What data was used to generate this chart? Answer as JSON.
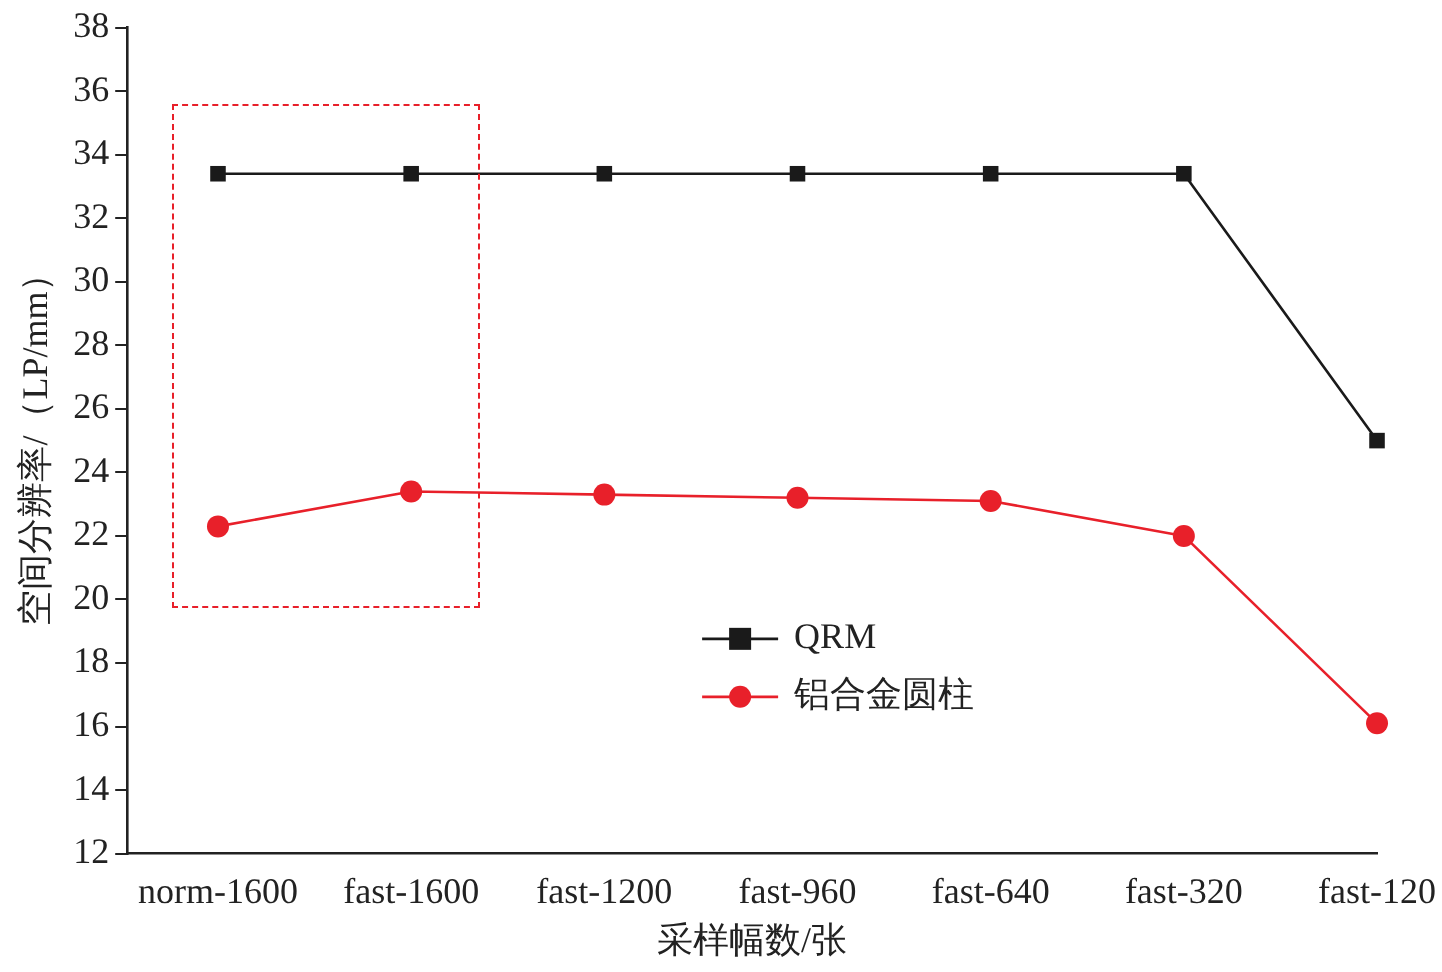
{
  "chart_data": {
    "type": "line",
    "xlabel": "采样幅数/张",
    "ylabel": "空间分辨率/（LP/mm）",
    "categories": [
      "norm-1600",
      "fast-1600",
      "fast-1200",
      "fast-960",
      "fast-640",
      "fast-320",
      "fast-120"
    ],
    "series": [
      {
        "name": "QRM",
        "color": "#1a1a1a",
        "marker": "square",
        "values": [
          33.4,
          33.4,
          33.4,
          33.4,
          33.4,
          33.4,
          25.0
        ]
      },
      {
        "name": "铝合金圆柱",
        "color": "#e8202a",
        "marker": "circle",
        "values": [
          22.3,
          23.4,
          23.3,
          23.2,
          23.1,
          22.0,
          16.1
        ]
      }
    ],
    "ylim": [
      12,
      38
    ],
    "yticks": [
      12,
      14,
      16,
      18,
      20,
      22,
      24,
      26,
      28,
      30,
      32,
      34,
      36,
      38
    ],
    "grid": false,
    "legend": "bottom",
    "line_style": "solid"
  }
}
